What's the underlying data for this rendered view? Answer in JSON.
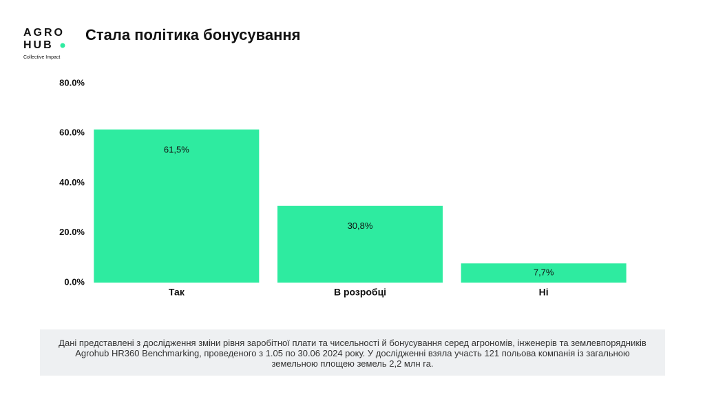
{
  "logo": {
    "line1": "AGRO",
    "line2": "HUB",
    "tagline": "Collective Impact"
  },
  "chart_data": {
    "type": "bar",
    "title": "Стала політика бонусування",
    "categories": [
      "Так",
      "В розробці",
      "Ні"
    ],
    "values": [
      61.5,
      30.8,
      7.7
    ],
    "value_labels": [
      "61,5%",
      "30,8%",
      "7,7%"
    ],
    "color": "#2eeba0",
    "ylim": [
      0,
      80
    ],
    "yticks": [
      {
        "value": 0,
        "label": "0.0%"
      },
      {
        "value": 20,
        "label": "20.0%"
      },
      {
        "value": 40,
        "label": "40.0%"
      },
      {
        "value": 60,
        "label": "60.0%"
      },
      {
        "value": 80,
        "label": "80.0%"
      }
    ],
    "grid": false
  },
  "note": "Дані представлені з дослідження зміни рівня заробітної плати та чисельності й бонусування серед агрономів, інженерів та землевпорядників Agrohub HR360 Benchmarking, проведеного з 1.05 по 30.06 2024 року. У дослідженні взяла участь 121 польова компанія із загальною земельною площею земель 2,2 млн га."
}
